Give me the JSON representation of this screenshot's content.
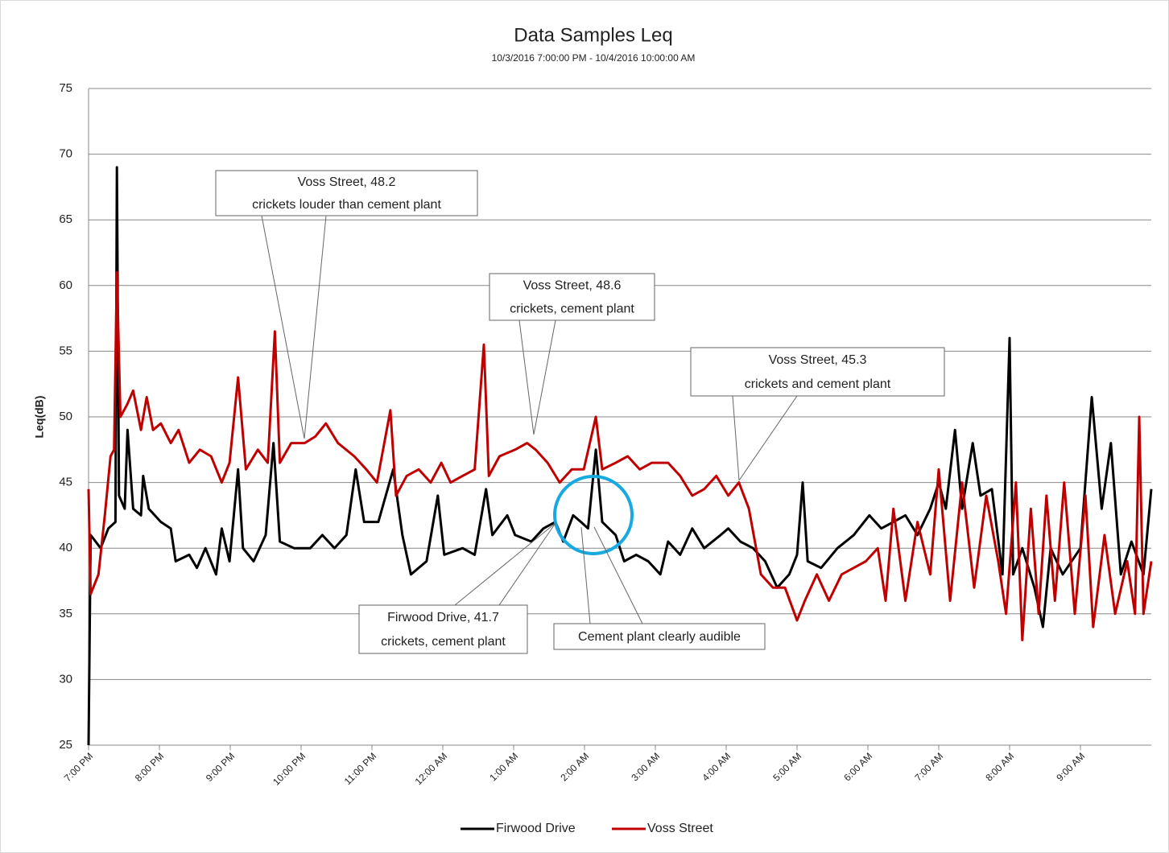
{
  "chart_data": {
    "type": "line",
    "title": "Data Samples Leq",
    "subtitle": "10/3/2016 7:00:00 PM - 10/4/2016 10:00:00 AM",
    "y_label": "Leq(dB)",
    "xlim": [
      0,
      15
    ],
    "xticks": [
      {
        "value": 0,
        "label": "7:00 PM"
      },
      {
        "value": 1,
        "label": "8:00 PM"
      },
      {
        "value": 2,
        "label": "9:00 PM"
      },
      {
        "value": 3,
        "label": "10:00 PM"
      },
      {
        "value": 4,
        "label": "11:00 PM"
      },
      {
        "value": 5,
        "label": "12:00 AM"
      },
      {
        "value": 6,
        "label": "1:00 AM"
      },
      {
        "value": 7,
        "label": "2:00 AM"
      },
      {
        "value": 8,
        "label": "3:00 AM"
      },
      {
        "value": 9,
        "label": "4:00 AM"
      },
      {
        "value": 10,
        "label": "5:00 AM"
      },
      {
        "value": 11,
        "label": "6:00 AM"
      },
      {
        "value": 12,
        "label": "7:00 AM"
      },
      {
        "value": 13,
        "label": "8:00 AM"
      },
      {
        "value": 14,
        "label": "9:00 AM"
      }
    ],
    "ylim": [
      25,
      75
    ],
    "yticks": [
      25,
      30,
      35,
      40,
      45,
      50,
      55,
      60,
      65,
      70,
      75
    ],
    "grid": true,
    "legend": "bottom",
    "series": [
      {
        "name": "Firwood Drive",
        "color": "#000000",
        "x": [
          0,
          0.03,
          0.17,
          0.28,
          0.38,
          0.4,
          0.43,
          0.51,
          0.55,
          0.63,
          0.74,
          0.77,
          0.85,
          1.02,
          1.16,
          1.23,
          1.42,
          1.53,
          1.65,
          1.8,
          1.88,
          1.99,
          2.11,
          2.18,
          2.33,
          2.5,
          2.61,
          2.7,
          2.9,
          3.13,
          3.3,
          3.47,
          3.64,
          3.77,
          3.89,
          4.09,
          4.3,
          4.43,
          4.55,
          4.77,
          4.93,
          5.02,
          5.28,
          5.45,
          5.61,
          5.7,
          5.91,
          6.02,
          6.25,
          6.42,
          6.59,
          6.7,
          6.84,
          6.95,
          7.05,
          7.16,
          7.25,
          7.44,
          7.56,
          7.73,
          7.9,
          8.07,
          8.18,
          8.35,
          8.52,
          8.69,
          8.92,
          9.03,
          9.2,
          9.38,
          9.55,
          9.72,
          9.89,
          10,
          10.08,
          10.15,
          10.34,
          10.57,
          10.8,
          11.02,
          11.19,
          11.36,
          11.53,
          11.7,
          11.88,
          12,
          12.1,
          12.23,
          12.33,
          12.48,
          12.59,
          12.75,
          12.9,
          13,
          13.05,
          13.18,
          13.35,
          13.47,
          13.58,
          13.75,
          14,
          14.16,
          14.3,
          14.43,
          14.57,
          14.72,
          14.89,
          15
        ],
        "values": [
          25,
          41,
          40,
          41.5,
          42,
          69,
          44,
          43,
          49,
          43,
          42.5,
          45.5,
          43,
          42,
          41.5,
          39,
          39.5,
          38.5,
          40,
          38,
          41.5,
          39,
          46,
          40,
          39,
          41,
          48,
          40.5,
          40,
          40,
          41,
          40,
          41,
          46,
          42,
          42,
          46,
          41,
          38,
          39,
          44,
          39.5,
          40,
          39.5,
          44.5,
          41,
          42.5,
          41,
          40.5,
          41.5,
          42,
          40.5,
          42.5,
          42,
          41.5,
          47.5,
          42,
          41,
          39,
          39.5,
          39,
          38,
          40.5,
          39.5,
          41.5,
          40,
          41,
          41.5,
          40.5,
          40,
          39,
          37,
          38,
          39.5,
          45,
          39,
          38.5,
          40,
          41,
          42.5,
          41.5,
          42,
          42.5,
          41,
          43,
          45,
          43,
          49,
          43,
          48,
          44,
          44.5,
          38,
          56,
          38,
          40,
          37,
          34,
          40,
          38,
          40,
          51.5,
          43,
          48,
          38,
          40.5,
          38,
          44.5
        ]
      },
      {
        "name": "Voss  Street",
        "color": "#c00000",
        "x": [
          0,
          0.03,
          0.14,
          0.23,
          0.31,
          0.36,
          0.4,
          0.45,
          0.55,
          0.63,
          0.74,
          0.82,
          0.91,
          1.02,
          1.16,
          1.27,
          1.42,
          1.57,
          1.73,
          1.88,
          1.99,
          2.11,
          2.22,
          2.39,
          2.53,
          2.63,
          2.7,
          2.86,
          3.05,
          3.2,
          3.35,
          3.52,
          3.75,
          3.92,
          4.07,
          4.26,
          4.34,
          4.49,
          4.66,
          4.83,
          4.98,
          5.11,
          5.28,
          5.45,
          5.58,
          5.65,
          5.8,
          6.02,
          6.19,
          6.31,
          6.48,
          6.65,
          6.82,
          6.99,
          7.16,
          7.25,
          7.44,
          7.61,
          7.78,
          7.95,
          8.18,
          8.35,
          8.52,
          8.69,
          8.86,
          9.03,
          9.18,
          9.32,
          9.49,
          9.66,
          9.83,
          10,
          10.11,
          10.28,
          10.45,
          10.63,
          10.8,
          10.97,
          11.14,
          11.25,
          11.36,
          11.53,
          11.7,
          11.88,
          12,
          12.16,
          12.33,
          12.5,
          12.67,
          12.84,
          12.95,
          13.09,
          13.18,
          13.3,
          13.41,
          13.52,
          13.64,
          13.77,
          13.92,
          14.07,
          14.18,
          14.34,
          14.49,
          14.66,
          14.77,
          14.83,
          14.89,
          15
        ],
        "values": [
          44.5,
          36.5,
          38,
          42.5,
          47,
          47.5,
          61,
          50,
          51,
          52,
          49,
          51.5,
          49,
          49.5,
          48,
          49,
          46.5,
          47.5,
          47,
          45,
          46.5,
          53,
          46,
          47.5,
          46.5,
          56.5,
          46.5,
          48,
          48,
          48.5,
          49.5,
          48,
          47,
          46,
          45,
          50.5,
          44,
          45.5,
          46,
          45,
          46.5,
          45,
          45.5,
          46,
          55.5,
          45.5,
          47,
          47.5,
          48,
          47.5,
          46.5,
          45,
          46,
          46,
          50,
          46,
          46.5,
          47,
          46,
          46.5,
          46.5,
          45.5,
          44,
          44.5,
          45.5,
          44,
          45,
          43,
          38,
          37,
          37,
          34.5,
          36,
          38,
          36,
          38,
          38.5,
          39,
          40,
          36,
          43,
          36,
          42,
          38,
          46,
          36,
          45,
          37,
          44,
          39,
          35,
          45,
          33,
          43,
          35,
          44,
          36,
          45,
          35,
          44,
          34,
          41,
          35,
          39,
          35,
          50,
          35,
          39
        ]
      }
    ],
    "annotations": [
      {
        "lines": [
          "Voss  Street, 48.2",
          "crickets louder than cement plant"
        ]
      },
      {
        "lines": [
          "Voss  Street, 48.6",
          "crickets, cement plant"
        ]
      },
      {
        "lines": [
          "Voss  Street, 45.3",
          "crickets and cement plant"
        ]
      },
      {
        "lines": [
          "Firwood Drive, 41.7",
          "crickets, cement plant"
        ]
      },
      {
        "lines": [
          "Cement plant clearly audible"
        ]
      }
    ]
  }
}
